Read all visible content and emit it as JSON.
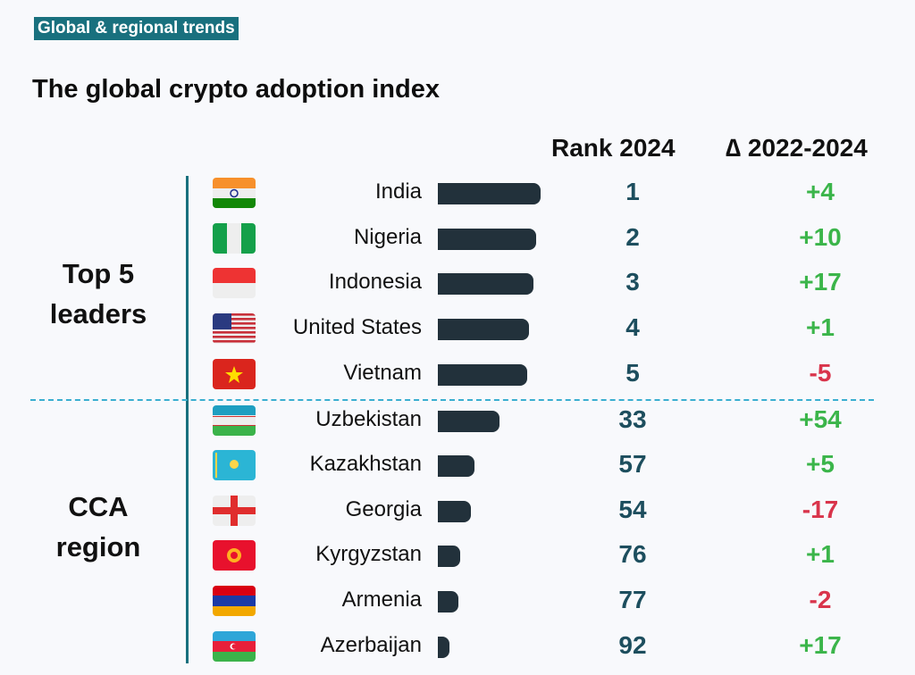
{
  "section_tag": "Global & regional trends",
  "chart_data": {
    "type": "table",
    "title": "The global crypto adoption index",
    "columns": [
      "Rank 2024",
      "∆ 2022-2024"
    ],
    "groups": [
      {
        "label": "Top 5 leaders",
        "rows": [
          {
            "country": "India",
            "flag": "india-flag",
            "bar_relative": 1.0,
            "rank": "1",
            "change": "+4"
          },
          {
            "country": "Nigeria",
            "flag": "nigeria-flag",
            "bar_relative": 0.96,
            "rank": "2",
            "change": "+10"
          },
          {
            "country": "Indonesia",
            "flag": "indonesia-flag",
            "bar_relative": 0.93,
            "rank": "3",
            "change": "+17"
          },
          {
            "country": "United States",
            "flag": "usa-flag",
            "bar_relative": 0.89,
            "rank": "4",
            "change": "+1"
          },
          {
            "country": "Vietnam",
            "flag": "vietnam-flag",
            "bar_relative": 0.87,
            "rank": "5",
            "change": "-5"
          }
        ]
      },
      {
        "label": "CCA region",
        "rows": [
          {
            "country": "Uzbekistan",
            "flag": "uzbekistan-flag",
            "bar_relative": 0.6,
            "rank": "33",
            "change": "+54"
          },
          {
            "country": "Kazakhstan",
            "flag": "kazakhstan-flag",
            "bar_relative": 0.36,
            "rank": "57",
            "change": "+5"
          },
          {
            "country": "Georgia",
            "flag": "georgia-flag",
            "bar_relative": 0.32,
            "rank": "54",
            "change": "-17"
          },
          {
            "country": "Kyrgyzstan",
            "flag": "kyrgyzstan-flag",
            "bar_relative": 0.22,
            "rank": "76",
            "change": "+1"
          },
          {
            "country": "Armenia",
            "flag": "armenia-flag",
            "bar_relative": 0.2,
            "rank": "77",
            "change": "-2"
          },
          {
            "country": "Azerbaijan",
            "flag": "azerbaijan-flag",
            "bar_relative": 0.11,
            "rank": "92",
            "change": "+17"
          }
        ]
      }
    ]
  },
  "colors": {
    "accent": "#19707e",
    "bar": "#22313b",
    "rank": "#1d4e5e",
    "positive": "#3bb54a",
    "negative": "#d9344b",
    "divider": "#3aaed0"
  }
}
